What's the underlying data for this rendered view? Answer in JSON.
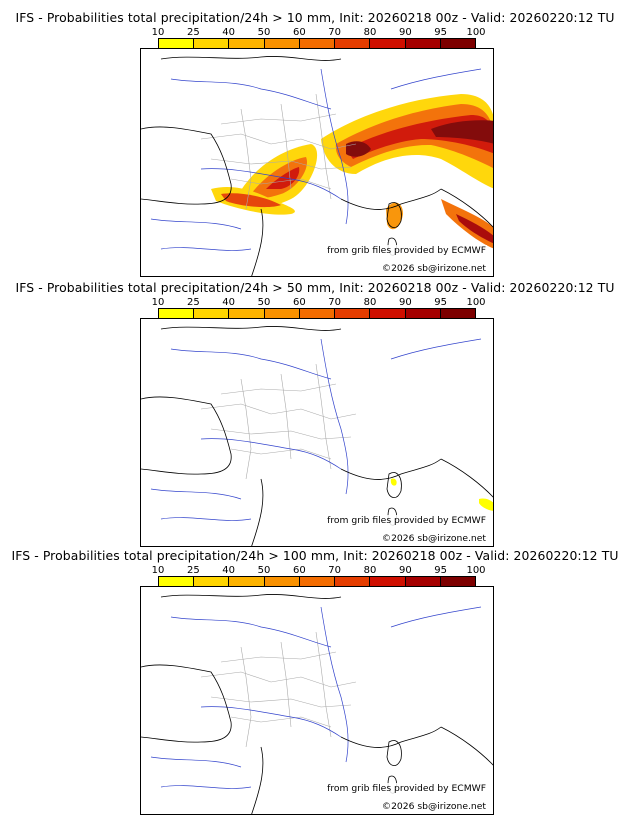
{
  "panels": [
    {
      "title": "IFS - Probabilities total precipitation/24h > 10 mm, Init: 20260218 00z - Valid: 20260220:12 TU",
      "threshold": 10
    },
    {
      "title": "IFS - Probabilities total precipitation/24h > 50 mm, Init: 20260218 00z - Valid: 20260220:12 TU",
      "threshold": 50
    },
    {
      "title": "IFS - Probabilities total precipitation/24h > 100 mm, Init: 20260218 00z - Valid: 20260220:12 TU",
      "threshold": 100
    }
  ],
  "colorbar": {
    "ticks": [
      "10",
      "25",
      "40",
      "50",
      "60",
      "70",
      "80",
      "90",
      "95",
      "100"
    ],
    "colors": [
      "#ffff00",
      "#ffd500",
      "#fdb300",
      "#f99100",
      "#f36c00",
      "#e53d00",
      "#cf0f00",
      "#a50000",
      "#7d0000"
    ]
  },
  "credits": {
    "source": "from grib files provided by ECMWF",
    "copyright": "©2026 sb@irizone.net"
  },
  "colors": {
    "coast": "#000000",
    "rivers": "#3344cc",
    "borders": "#aaaaaa"
  }
}
